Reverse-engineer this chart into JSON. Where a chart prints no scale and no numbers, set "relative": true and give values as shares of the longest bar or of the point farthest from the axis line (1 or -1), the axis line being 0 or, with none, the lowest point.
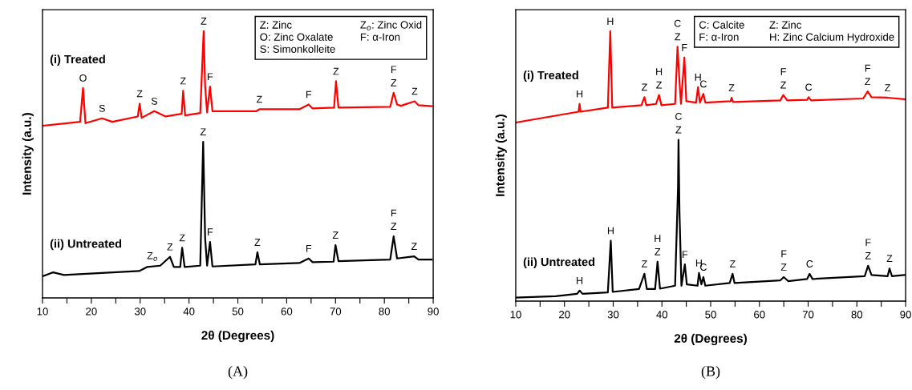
{
  "chart_data": [
    {
      "type": "line",
      "relative": true,
      "title": "(A)",
      "xlabel": "2θ (Degrees)",
      "ylabel": "Intensity (a.u.)",
      "tick_labels": "x",
      "xlim": [
        10,
        90
      ],
      "xticks": [
        10,
        {
          "value": 15,
          "label": null
        },
        20,
        {
          "value": 25,
          "label": null
        },
        30,
        {
          "value": 35,
          "label": null
        },
        40,
        {
          "value": 45,
          "label": null
        },
        50,
        {
          "value": 55,
          "label": null
        },
        60,
        {
          "value": 65,
          "label": null
        },
        70,
        {
          "value": 75,
          "label": null
        },
        80,
        {
          "value": 85,
          "label": null
        },
        90
      ],
      "series": [
        {
          "name": "(i) Treated",
          "color": "#ff0000",
          "x": [
            10,
            17.7,
            18.3,
            18.8,
            22.2,
            24.3,
            29.5,
            29.9,
            30.3,
            32.9,
            35.2,
            38.5,
            38.8,
            39.2,
            42.3,
            43.0,
            43.3,
            43.7,
            44.3,
            44.8,
            53.8,
            54.4,
            62.6,
            64.5,
            65.3,
            69.7,
            70.1,
            70.6,
            81.2,
            81.9,
            82.6,
            83.4,
            86.2,
            87.0,
            89.7
          ],
          "values": [
            0.645,
            0.66,
            0.787,
            0.655,
            0.673,
            0.66,
            0.68,
            0.728,
            0.675,
            0.7,
            0.68,
            0.69,
            0.776,
            0.684,
            0.693,
            1.0,
            0.794,
            0.695,
            0.792,
            0.7,
            0.7,
            0.707,
            0.707,
            0.725,
            0.71,
            0.713,
            0.812,
            0.713,
            0.716,
            0.769,
            0.725,
            0.72,
            0.737,
            0.722,
            0.719
          ]
        },
        {
          "name": "(ii) Untreated",
          "color": "#000000",
          "x": [
            10,
            12.2,
            14.4,
            29.8,
            31.4,
            34.1,
            36.1,
            36.9,
            38.2,
            38.6,
            39.1,
            42.3,
            42.9,
            43.3,
            43.7,
            44.3,
            44.8,
            53.6,
            54.0,
            54.5,
            62.6,
            64.5,
            65.3,
            69.6,
            70.0,
            70.6,
            81.2,
            81.9,
            82.6,
            86.1,
            87.0,
            89.7
          ],
          "values": [
            0.081,
            0.096,
            0.086,
            0.101,
            0.116,
            0.121,
            0.154,
            0.116,
            0.116,
            0.188,
            0.116,
            0.121,
            0.585,
            0.225,
            0.121,
            0.21,
            0.118,
            0.126,
            0.171,
            0.126,
            0.131,
            0.148,
            0.134,
            0.136,
            0.198,
            0.138,
            0.144,
            0.231,
            0.148,
            0.156,
            0.144,
            0.144
          ]
        }
      ],
      "annotations": [
        "Z: Zinc",
        "Z$_{o}$: Zinc Oxid",
        "O: Zinc Oxalate",
        "F: α-Iron",
        "S: Simonkolleite",
        {
          "text": "O",
          "x": 18.3,
          "y": 0.787
        },
        {
          "text": "S",
          "x": 22.2,
          "y": 0.673
        },
        {
          "text": "Z",
          "x": 29.9,
          "y": 0.728
        },
        {
          "text": "S",
          "x": 32.9,
          "y": 0.7
        },
        {
          "text": "Z",
          "x": 38.8,
          "y": 0.776
        },
        {
          "text": "Z",
          "x": 43.0,
          "y": 1.0
        },
        {
          "text": "F",
          "x": 44.3,
          "y": 0.792
        },
        {
          "text": "Z",
          "x": 54.4,
          "y": 0.707
        },
        {
          "text": "F",
          "x": 64.5,
          "y": 0.725
        },
        {
          "text": "Z",
          "x": 70.1,
          "y": 0.812
        },
        {
          "text": "Z",
          "x": 81.9,
          "y": 0.769
        },
        {
          "text": "F",
          "x": 81.9,
          "y": 0.769
        },
        {
          "text": "Z",
          "x": 86.2,
          "y": 0.737
        },
        {
          "text": "Z$_{o}$",
          "x": 32.5,
          "y": 0.121
        },
        {
          "text": "Z",
          "x": 36.1,
          "y": 0.154
        },
        {
          "text": "Z",
          "x": 38.6,
          "y": 0.188
        },
        {
          "text": "Z",
          "x": 42.9,
          "y": 0.585
        },
        {
          "text": "F",
          "x": 44.3,
          "y": 0.21
        },
        {
          "text": "Z",
          "x": 54.0,
          "y": 0.171
        },
        {
          "text": "F",
          "x": 64.5,
          "y": 0.148
        },
        {
          "text": "Z",
          "x": 70.0,
          "y": 0.198
        },
        {
          "text": "Z",
          "x": 81.9,
          "y": 0.231
        },
        {
          "text": "F",
          "x": 81.9,
          "y": 0.231
        },
        {
          "text": "Z",
          "x": 86.1,
          "y": 0.156
        }
      ]
    },
    {
      "type": "line",
      "relative": true,
      "title": "(B)",
      "xlabel": "2θ (Degrees)",
      "ylabel": "Intensity (a.u.)",
      "tick_labels": "x",
      "xlim": [
        10,
        90
      ],
      "xticks": [
        10,
        {
          "value": 15,
          "label": null
        },
        20,
        {
          "value": 25,
          "label": null
        },
        30,
        {
          "value": 35,
          "label": null
        },
        40,
        {
          "value": 45,
          "label": null
        },
        50,
        {
          "value": 55,
          "label": null
        },
        60,
        {
          "value": 65,
          "label": null
        },
        70,
        {
          "value": 75,
          "label": null
        },
        80,
        {
          "value": 85,
          "label": null
        },
        90
      ],
      "series": [
        {
          "name": "(i) Treated",
          "color": "#ff0000",
          "x": [
            10,
            22.9,
            23.1,
            23.3,
            28.9,
            29.4,
            29.8,
            35.8,
            36.4,
            36.8,
            38.8,
            39.4,
            39.9,
            42.7,
            43.2,
            43.5,
            43.9,
            44.6,
            45.0,
            47.0,
            47.4,
            47.8,
            48.5,
            48.9,
            54.1,
            54.3,
            54.6,
            64.3,
            64.9,
            65.7,
            69.8,
            70.1,
            70.6,
            81.3,
            82.2,
            83.0,
            86.3,
            90
          ],
          "values": [
            0.662,
            0.702,
            0.731,
            0.702,
            0.717,
            1.0,
            0.717,
            0.726,
            0.756,
            0.726,
            0.731,
            0.764,
            0.726,
            0.731,
            0.943,
            0.844,
            0.731,
            0.903,
            0.741,
            0.736,
            0.793,
            0.736,
            0.768,
            0.736,
            0.741,
            0.754,
            0.738,
            0.744,
            0.764,
            0.744,
            0.746,
            0.756,
            0.744,
            0.751,
            0.777,
            0.756,
            0.754,
            0.748
          ]
        },
        {
          "name": "(ii) Untreated",
          "color": "#000000",
          "x": [
            10,
            18.2,
            22.6,
            23.1,
            23.7,
            28.9,
            29.5,
            29.9,
            35.3,
            36.4,
            36.9,
            38.6,
            39.1,
            39.6,
            42.7,
            43.3,
            43.4,
            43.6,
            44.0,
            44.7,
            45.1,
            47.3,
            47.6,
            48.1,
            48.5,
            48.9,
            53.9,
            54.5,
            54.9,
            64.3,
            65.0,
            65.9,
            69.8,
            70.3,
            70.9,
            81.6,
            82.3,
            83.0,
            86.3,
            86.7,
            87.2,
            90
          ],
          "values": [
            0.013,
            0.018,
            0.027,
            0.039,
            0.027,
            0.032,
            0.224,
            0.034,
            0.045,
            0.101,
            0.045,
            0.045,
            0.146,
            0.046,
            0.057,
            0.421,
            0.598,
            0.328,
            0.057,
            0.136,
            0.062,
            0.057,
            0.104,
            0.062,
            0.089,
            0.057,
            0.067,
            0.101,
            0.067,
            0.077,
            0.089,
            0.074,
            0.082,
            0.101,
            0.082,
            0.092,
            0.131,
            0.097,
            0.092,
            0.121,
            0.092,
            0.097
          ]
        }
      ],
      "annotations": [
        "C: Calcite",
        "Z: Zinc",
        "F: α-Iron",
        "H: Zinc Calcium Hydroxide",
        {
          "text": "H",
          "x": 23.1,
          "y": 0.731
        },
        {
          "text": "H",
          "x": 29.4,
          "y": 1.0
        },
        {
          "text": "Z",
          "x": 36.4,
          "y": 0.756
        },
        {
          "text": "Z",
          "x": 39.4,
          "y": 0.764
        },
        {
          "text": "H",
          "x": 39.4,
          "y": 0.764
        },
        {
          "text": "Z",
          "x": 43.2,
          "y": 0.943
        },
        {
          "text": "C",
          "x": 43.2,
          "y": 0.943
        },
        {
          "text": "F",
          "x": 44.6,
          "y": 0.903
        },
        {
          "text": "H",
          "x": 47.4,
          "y": 0.793
        },
        {
          "text": "C",
          "x": 48.5,
          "y": 0.768
        },
        {
          "text": "Z",
          "x": 54.3,
          "y": 0.754
        },
        {
          "text": "Z",
          "x": 64.9,
          "y": 0.764
        },
        {
          "text": "F",
          "x": 64.9,
          "y": 0.764
        },
        {
          "text": "C",
          "x": 70.1,
          "y": 0.756
        },
        {
          "text": "Z",
          "x": 82.2,
          "y": 0.777
        },
        {
          "text": "F",
          "x": 82.2,
          "y": 0.777
        },
        {
          "text": "Z",
          "x": 86.3,
          "y": 0.754
        },
        {
          "text": "H",
          "x": 23.1,
          "y": 0.039
        },
        {
          "text": "H",
          "x": 29.5,
          "y": 0.224
        },
        {
          "text": "Z",
          "x": 36.4,
          "y": 0.101
        },
        {
          "text": "Z",
          "x": 39.1,
          "y": 0.146
        },
        {
          "text": "H",
          "x": 39.1,
          "y": 0.146
        },
        {
          "text": "Z",
          "x": 43.4,
          "y": 0.598
        },
        {
          "text": "C",
          "x": 43.4,
          "y": 0.598
        },
        {
          "text": "F",
          "x": 44.7,
          "y": 0.136
        },
        {
          "text": "H",
          "x": 47.6,
          "y": 0.104
        },
        {
          "text": "C",
          "x": 48.5,
          "y": 0.089
        },
        {
          "text": "Z",
          "x": 54.5,
          "y": 0.101
        },
        {
          "text": "Z",
          "x": 65.0,
          "y": 0.089
        },
        {
          "text": "F",
          "x": 65.0,
          "y": 0.089
        },
        {
          "text": "C",
          "x": 70.3,
          "y": 0.101
        },
        {
          "text": "Z",
          "x": 82.3,
          "y": 0.131
        },
        {
          "text": "F",
          "x": 82.3,
          "y": 0.131
        },
        {
          "text": "Z",
          "x": 86.7,
          "y": 0.121
        }
      ]
    }
  ]
}
